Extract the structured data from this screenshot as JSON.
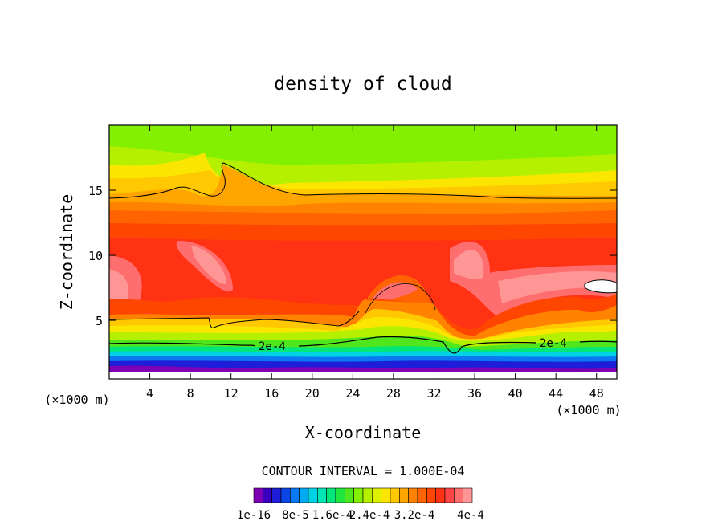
{
  "chart_data": {
    "type": "heatmap",
    "title": "density of cloud",
    "xlabel": "X-coordinate",
    "ylabel": "Z-coordinate",
    "x_unit": "(×1000 m)",
    "xlim": [
      0,
      50
    ],
    "ylim": [
      0.5,
      20
    ],
    "x_ticks": [
      "4",
      "8",
      "12",
      "16",
      "20",
      "24",
      "28",
      "32",
      "36",
      "40",
      "44",
      "48"
    ],
    "y_ticks": [
      "5",
      "10",
      "15"
    ],
    "contour_interval_text": "CONTOUR INTERVAL = 1.000E-04",
    "contour_labels": [
      "2e-4",
      "2e-4"
    ],
    "colorbar_labels": [
      "1e-16",
      "8e-5",
      "1.6e-4",
      "2.4e-4",
      "3.2e-4",
      "4e-4"
    ],
    "colorbar_colors": [
      "#7d00b5",
      "#3a00c0",
      "#1e1ed8",
      "#0a46e6",
      "#0a78f0",
      "#00aaf0",
      "#00d2e6",
      "#00e6b4",
      "#00e678",
      "#1ee63c",
      "#50e61e",
      "#82f000",
      "#b4f000",
      "#dcf000",
      "#fae600",
      "#ffc800",
      "#ffa500",
      "#ff8200",
      "#ff6400",
      "#ff4600",
      "#ff3214",
      "#ff4646",
      "#ff6e6e",
      "#ff9696"
    ],
    "features": [
      {
        "name": "contour-2e-4-level",
        "z_km": 3.0
      },
      {
        "name": "upper-contour",
        "z_km": 14.4
      },
      {
        "name": "lower-contour",
        "z_km": 4.8
      }
    ]
  }
}
